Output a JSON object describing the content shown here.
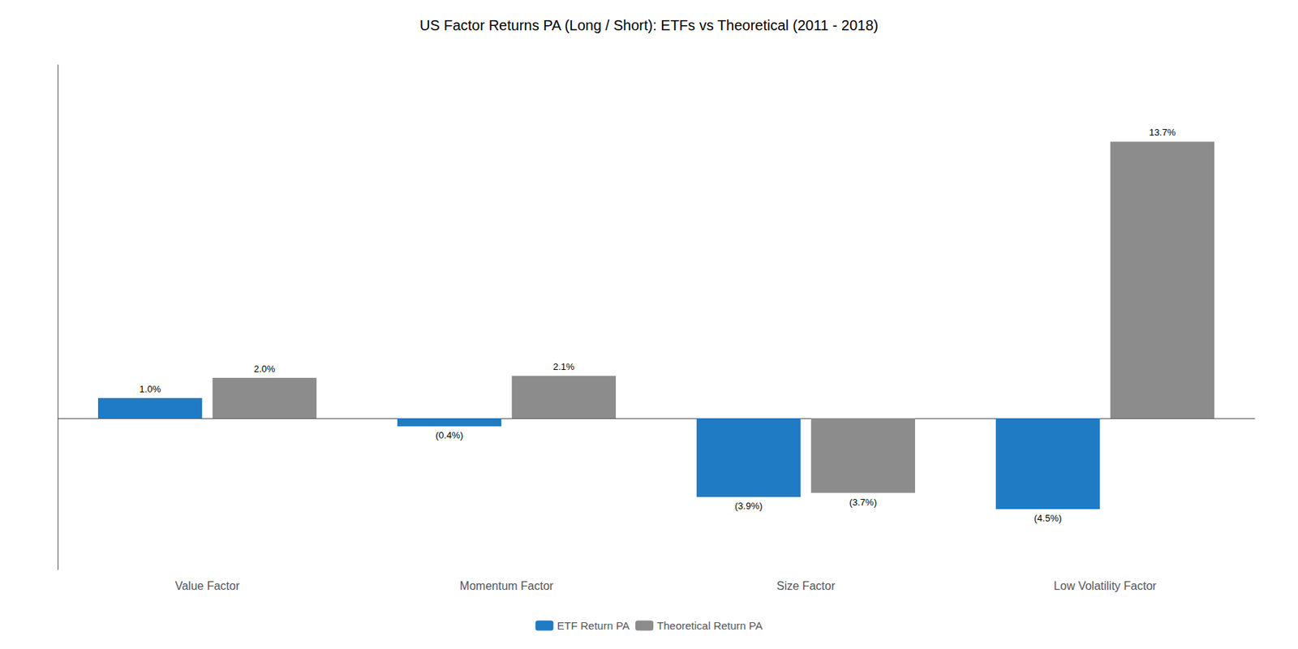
{
  "chart_data": {
    "type": "bar",
    "title": "US Factor Returns PA (Long / Short): ETFs vs Theoretical (2011 - 2018)",
    "categories": [
      "Value Factor",
      "Momentum Factor",
      "Size Factor",
      "Low Volatility Factor"
    ],
    "series": [
      {
        "name": "ETF Return PA",
        "color": "#1F7BC4",
        "values": [
          1.0,
          -0.4,
          -3.9,
          -4.5
        ],
        "value_labels": [
          "1.0%",
          "(0.4%)",
          "(3.9%)",
          "(4.5%)"
        ]
      },
      {
        "name": "Theoretical Return PA",
        "color": "#8C8C8C",
        "values": [
          2.0,
          2.1,
          -3.7,
          13.7
        ],
        "value_labels": [
          "2.0%",
          "2.1%",
          "(3.7%)",
          "13.7%"
        ]
      }
    ],
    "ylim": [
      -7.5,
      17.5
    ],
    "grid": false,
    "legend": "bottom",
    "data_labels": true,
    "tick_labels": "x"
  }
}
